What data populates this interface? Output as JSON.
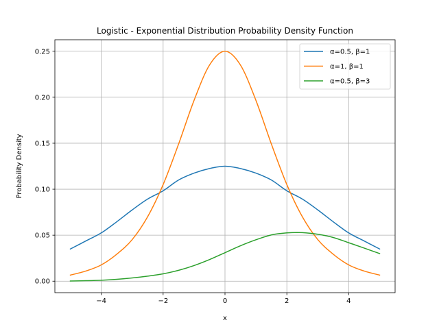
{
  "chart_data": {
    "type": "line",
    "title": "Logistic - Exponential Distribution Probability Density Function",
    "xlabel": "x",
    "ylabel": "Probability Density",
    "xlim": [
      -5.5,
      5.5
    ],
    "ylim": [
      -0.0125,
      0.2625
    ],
    "xticks": [
      -4,
      -2,
      0,
      2,
      4
    ],
    "xtick_labels": [
      "−4",
      "−2",
      "0",
      "2",
      "4"
    ],
    "yticks": [
      0.0,
      0.05,
      0.1,
      0.15,
      0.2,
      0.25
    ],
    "ytick_labels": [
      "0.00",
      "0.05",
      "0.10",
      "0.15",
      "0.20",
      "0.25"
    ],
    "grid": true,
    "legend_position": "top-right",
    "x": [
      -5.0,
      -4.5,
      -4.0,
      -3.5,
      -3.0,
      -2.5,
      -2.0,
      -1.5,
      -1.0,
      -0.5,
      0.0,
      0.5,
      1.0,
      1.5,
      2.0,
      2.5,
      3.0,
      3.5,
      4.0,
      4.5,
      5.0
    ],
    "series": [
      {
        "name": "α=0.5, β=1",
        "color": "#1f77b4",
        "values": [
          0.035,
          0.0437,
          0.0525,
          0.0646,
          0.0775,
          0.0893,
          0.0983,
          0.11,
          0.1175,
          0.1225,
          0.125,
          0.1225,
          0.1175,
          0.11,
          0.0983,
          0.0893,
          0.0775,
          0.0646,
          0.0525,
          0.0437,
          0.035
        ]
      },
      {
        "name": "α=1, β=1",
        "color": "#ff7f0e",
        "values": [
          0.0066,
          0.011,
          0.0177,
          0.0293,
          0.0452,
          0.0701,
          0.105,
          0.1491,
          0.1966,
          0.235,
          0.25,
          0.235,
          0.1966,
          0.1491,
          0.105,
          0.0701,
          0.0452,
          0.0293,
          0.0177,
          0.011,
          0.0066
        ]
      },
      {
        "name": "α=0.5, β=3",
        "color": "#2ca02c",
        "values": [
          0.0002,
          0.0005,
          0.001,
          0.002,
          0.0035,
          0.0055,
          0.008,
          0.0118,
          0.017,
          0.0235,
          0.031,
          0.0385,
          0.045,
          0.0503,
          0.0525,
          0.0528,
          0.051,
          0.0475,
          0.0418,
          0.036,
          0.03
        ]
      }
    ]
  }
}
